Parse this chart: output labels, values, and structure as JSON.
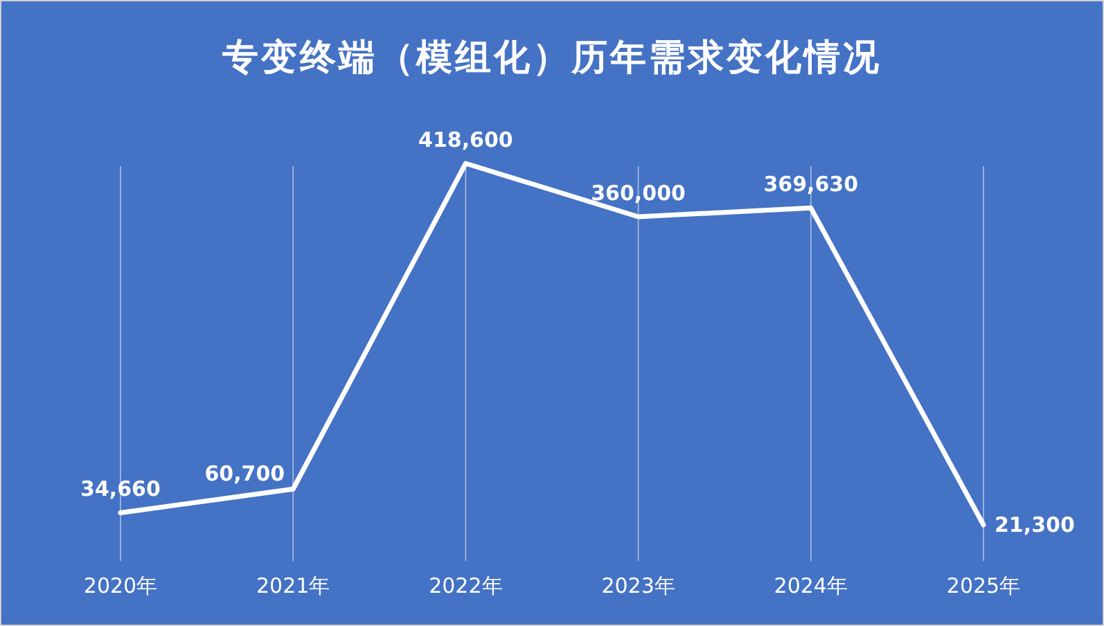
{
  "chart_data": {
    "type": "line",
    "title": "专变终端（模组化）历年需求变化情况",
    "categories": [
      "2020年",
      "2021年",
      "2022年",
      "2023年",
      "2024年",
      "2025年"
    ],
    "series": [
      {
        "color": "#ffffff",
        "values": [
          34660,
          60700,
          418600,
          360000,
          369630,
          21300
        ],
        "value_labels": [
          "34,660",
          "60,700",
          "418,600",
          "360,000",
          "369,630",
          "21,300"
        ]
      }
    ],
    "marker": "none",
    "grid": "x",
    "tick_labels": "x"
  }
}
